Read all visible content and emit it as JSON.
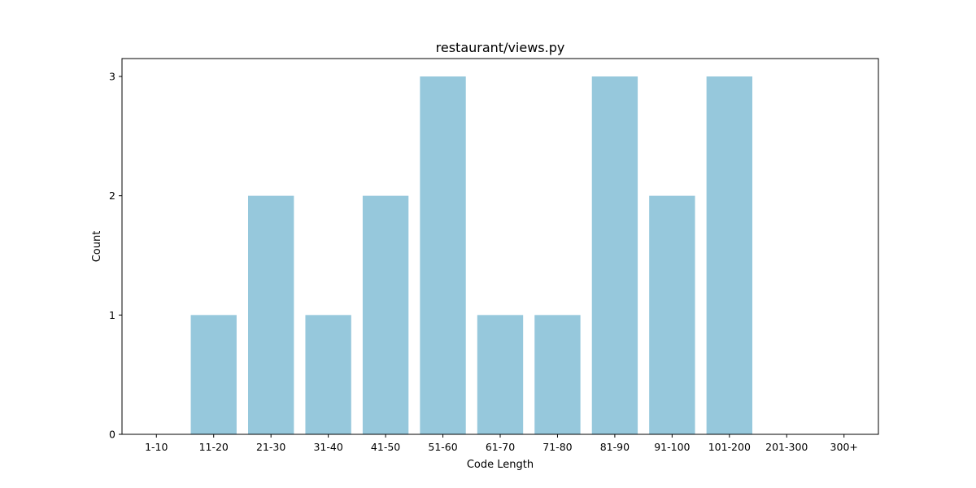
{
  "chart_data": {
    "type": "bar",
    "title": "restaurant/views.py",
    "xlabel": "Code Length",
    "ylabel": "Count",
    "categories": [
      "1-10",
      "11-20",
      "21-30",
      "31-40",
      "41-50",
      "51-60",
      "61-70",
      "71-80",
      "81-90",
      "91-100",
      "101-200",
      "201-300",
      "300+"
    ],
    "values": [
      0,
      1,
      2,
      1,
      2,
      3,
      1,
      1,
      3,
      2,
      3,
      0,
      0
    ],
    "ylim": [
      0,
      3.15
    ],
    "yticks": [
      "0",
      "1",
      "2",
      "3"
    ],
    "grid": false,
    "legend": "none",
    "bar_color": "#96c8dc",
    "axis_color": "#000000"
  }
}
